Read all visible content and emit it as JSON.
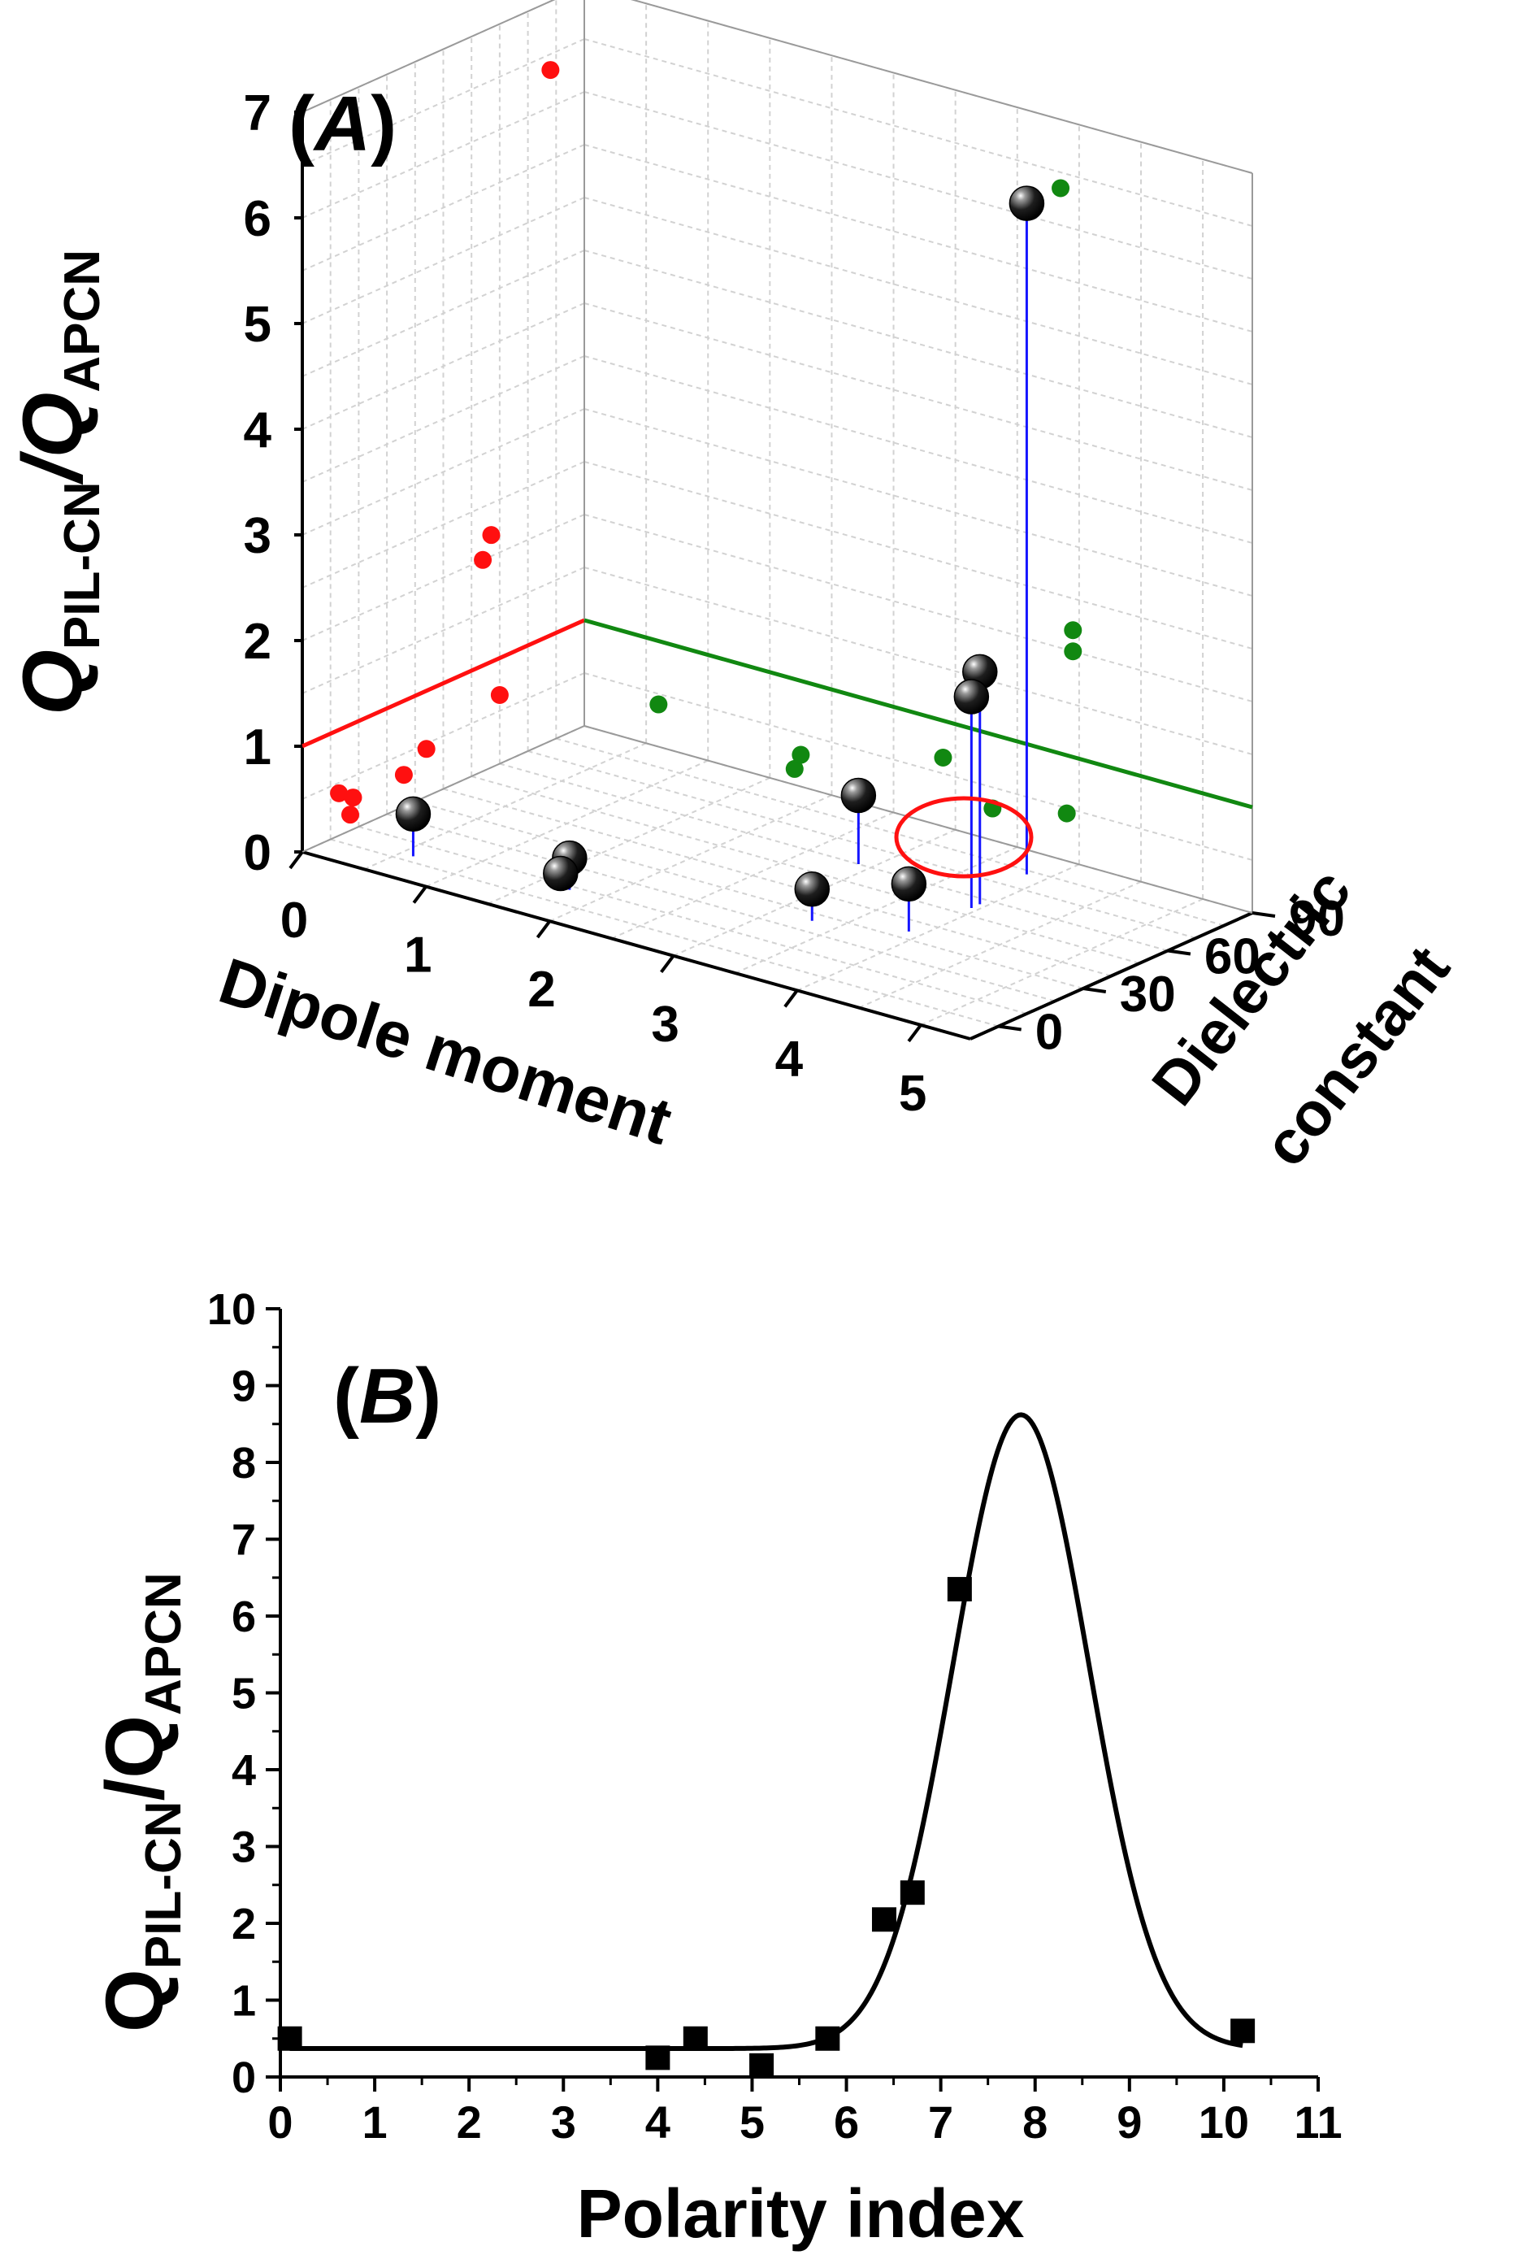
{
  "chart_data": [
    {
      "type": "scatter3d",
      "panel_label": "A",
      "zlabel_main": "Q",
      "zlabel_sub1": "PIL-CN",
      "zlabel_slash": "/Q",
      "zlabel_sub2": "APCN",
      "xlabel": "Dipole moment",
      "ylabel_line1": "Dielectric",
      "ylabel_line2": "constant",
      "x_ticks": [
        "0",
        "1",
        "2",
        "3",
        "4",
        "5"
      ],
      "y_ticks": [
        "0",
        "30",
        "60",
        "90"
      ],
      "z_ticks": [
        "0",
        "1",
        "2",
        "3",
        "4",
        "5",
        "6",
        "7"
      ],
      "xlim": [
        0,
        5.4
      ],
      "ylim": [
        -10,
        90
      ],
      "zlim": [
        0,
        7
      ],
      "points": [
        {
          "x": 0.6,
          "y": 3,
          "z": 0.4
        },
        {
          "x": 1.7,
          "y": 7,
          "z": 0.15
        },
        {
          "x": 1.75,
          "y": 8,
          "z": 0.3
        },
        {
          "x": 3.3,
          "y": 26,
          "z": 0.3
        },
        {
          "x": 3.9,
          "y": 34,
          "z": 0.45
        },
        {
          "x": 2.9,
          "y": 60,
          "z": 0.65
        },
        {
          "x": 3.95,
          "y": 54,
          "z": 2.0
        },
        {
          "x": 3.95,
          "y": 57,
          "z": 2.2
        },
        {
          "x": 3.85,
          "y": 78,
          "z": 6.35
        }
      ],
      "reference_value": 1.0,
      "colors": {
        "points": "#0a0a0a",
        "stems": "#1515ff",
        "projection_xz": "#ff1010",
        "projection_yz": "#118811",
        "highlight": "#ff1010",
        "grid": "#d2d2d2"
      }
    },
    {
      "type": "scatter",
      "panel_label": "B",
      "ylabel_main": "Q",
      "ylabel_sub1": "PIL-CN",
      "ylabel_slash": "/Q",
      "ylabel_sub2": "APCN",
      "xlabel": "Polarity index",
      "xlim": [
        0,
        11
      ],
      "ylim": [
        0,
        10
      ],
      "x_ticks": [
        "0",
        "1",
        "2",
        "3",
        "4",
        "5",
        "6",
        "7",
        "8",
        "9",
        "10",
        "11"
      ],
      "y_ticks": [
        "0",
        "1",
        "2",
        "3",
        "4",
        "5",
        "6",
        "7",
        "8",
        "9",
        "10"
      ],
      "points": [
        {
          "x": 0.1,
          "y": 0.5
        },
        {
          "x": 4.0,
          "y": 0.25
        },
        {
          "x": 4.4,
          "y": 0.5
        },
        {
          "x": 5.1,
          "y": 0.15
        },
        {
          "x": 5.8,
          "y": 0.5
        },
        {
          "x": 6.4,
          "y": 2.05
        },
        {
          "x": 6.7,
          "y": 2.4
        },
        {
          "x": 7.2,
          "y": 6.35
        },
        {
          "x": 10.2,
          "y": 0.6
        }
      ],
      "fit": {
        "baseline": 0.37,
        "amplitude": 8.25,
        "center": 7.85,
        "sigma": 0.72,
        "x_range": [
          0.1,
          10.2
        ]
      }
    }
  ]
}
